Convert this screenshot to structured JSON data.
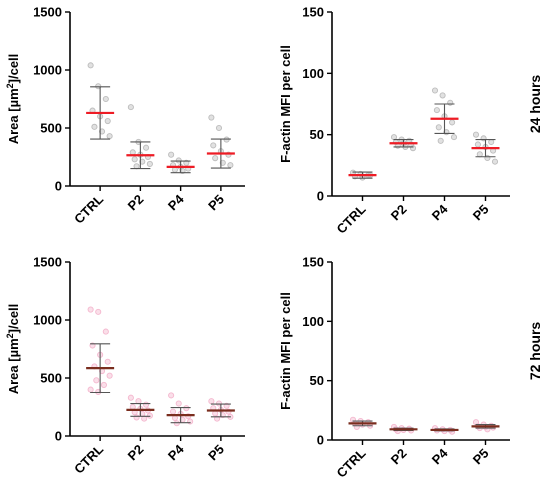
{
  "chart_data": [
    {
      "id": "area-24h",
      "type": "scatter",
      "ylabel_pre": "Area [",
      "ylabel_unit": "µm",
      "ylabel_sup": "2",
      "ylabel_post": "]/cell",
      "ylim": [
        0,
        1500
      ],
      "yticks": [
        0,
        500,
        1000,
        1500
      ],
      "ytick_labels": [
        "0",
        "500",
        "1000",
        "1500"
      ],
      "categories": [
        "CTRL",
        "P2",
        "P4",
        "P5"
      ],
      "mean": [
        630,
        265,
        165,
        280
      ],
      "sd": [
        225,
        115,
        50,
        125
      ],
      "points": [
        [
          1040,
          860,
          750,
          650,
          600,
          560,
          510,
          470,
          430
        ],
        [
          680,
          380,
          330,
          290,
          270,
          250,
          230,
          210,
          190,
          170
        ],
        [
          270,
          220,
          200,
          180,
          165,
          150,
          140,
          130
        ],
        [
          590,
          500,
          400,
          350,
          300,
          270,
          240,
          200,
          180
        ]
      ],
      "mean_color": "#ee1c25",
      "point_color": "#bdbdbd"
    },
    {
      "id": "factin-24h",
      "type": "scatter",
      "ylabel_pre": "F-actin MFI per cell",
      "ylim": [
        0,
        150
      ],
      "yticks": [
        0,
        50,
        100,
        150
      ],
      "ytick_labels": [
        "0",
        "50",
        "100",
        "150"
      ],
      "categories": [
        "CTRL",
        "P2",
        "P4",
        "P5"
      ],
      "mean": [
        17,
        43,
        63,
        39
      ],
      "sd": [
        2.5,
        3,
        12,
        7
      ],
      "points": [
        [
          19,
          18,
          17,
          16,
          15,
          17
        ],
        [
          48,
          46,
          45,
          44,
          43,
          42,
          41,
          40,
          39
        ],
        [
          86,
          82,
          76,
          70,
          65,
          60,
          56,
          52,
          48,
          45
        ],
        [
          50,
          47,
          44,
          42,
          40,
          37,
          34,
          31,
          28
        ]
      ],
      "mean_color": "#ee1c25",
      "point_color": "#bdbdbd",
      "row_label": "24 hours"
    },
    {
      "id": "area-72h",
      "type": "scatter",
      "ylabel_pre": "Area [",
      "ylabel_unit": "µm",
      "ylabel_sup": "2",
      "ylabel_post": "]/cell",
      "ylim": [
        0,
        1500
      ],
      "yticks": [
        0,
        500,
        1000,
        1500
      ],
      "ytick_labels": [
        "0",
        "500",
        "1000",
        "1500"
      ],
      "categories": [
        "CTRL",
        "P2",
        "P4",
        "P5"
      ],
      "mean": [
        585,
        225,
        180,
        220
      ],
      "sd": [
        210,
        55,
        65,
        55
      ],
      "points": [
        [
          1090,
          1070,
          900,
          780,
          700,
          640,
          600,
          560,
          520,
          480,
          440,
          400,
          380
        ],
        [
          330,
          300,
          270,
          250,
          235,
          220,
          205,
          190,
          175,
          160,
          150
        ],
        [
          350,
          280,
          240,
          210,
          190,
          170,
          155,
          140,
          125,
          110
        ],
        [
          300,
          280,
          260,
          240,
          225,
          210,
          195,
          180,
          165,
          150
        ]
      ],
      "mean_color": "#7a2d1e",
      "point_color": "#f4b8cf"
    },
    {
      "id": "factin-72h",
      "type": "scatter",
      "ylabel_pre": "F-actin MFI per cell",
      "ylim": [
        0,
        150
      ],
      "yticks": [
        0,
        50,
        100,
        150
      ],
      "ytick_labels": [
        "0",
        "50",
        "100",
        "150"
      ],
      "categories": [
        "CTRL",
        "P2",
        "P4",
        "P5"
      ],
      "mean": [
        14,
        9,
        8.5,
        11.5
      ],
      "sd": [
        2,
        1,
        0.8,
        1.5
      ],
      "points": [
        [
          17,
          16,
          15,
          14,
          13,
          12,
          11
        ],
        [
          11,
          10,
          9.5,
          9,
          8.5,
          8,
          7.5
        ],
        [
          10,
          9,
          8.5,
          8,
          7.5,
          7
        ],
        [
          15,
          13,
          12,
          11.5,
          11,
          10.5,
          10,
          9
        ]
      ],
      "mean_color": "#7a2d1e",
      "point_color": "#f4b8cf",
      "row_label": "72 hours"
    }
  ]
}
